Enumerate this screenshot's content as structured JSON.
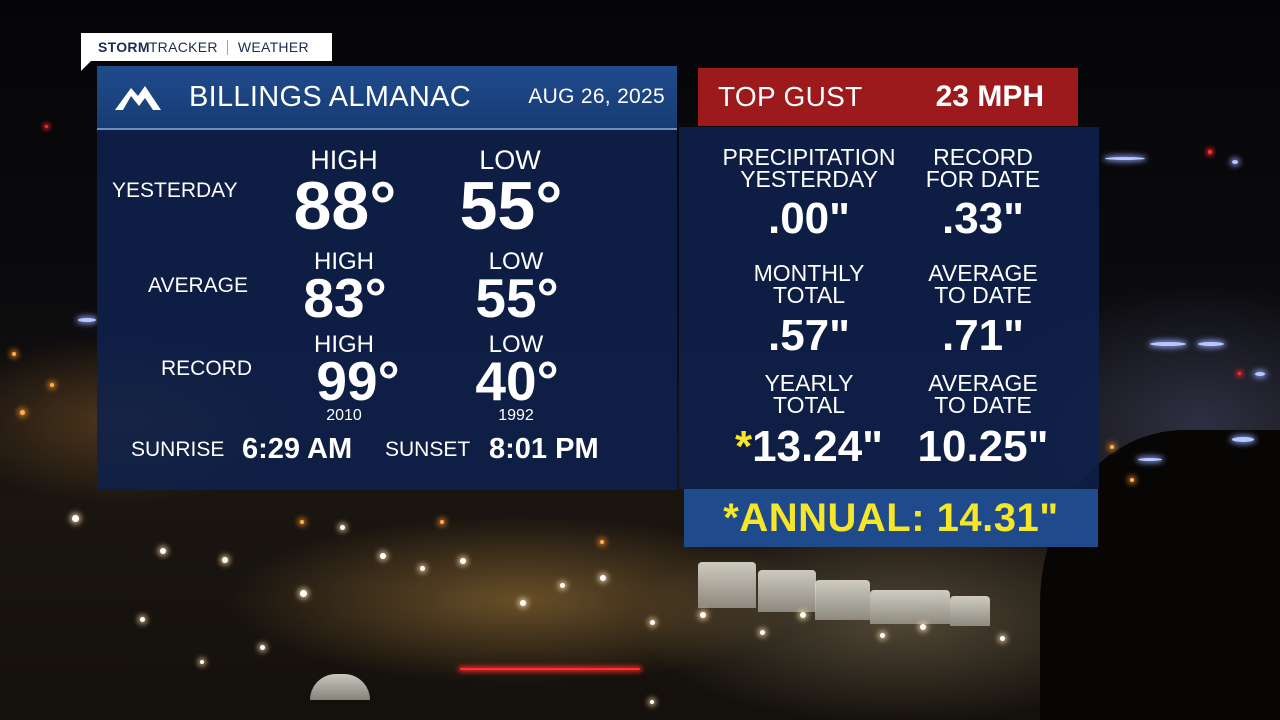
{
  "brand": {
    "name_bold": "STORM",
    "name_rest": "TRACKER",
    "section": "WEATHER"
  },
  "header": {
    "title": "BILLINGS ALMANAC",
    "date": "AUG 26, 2025",
    "icon": "mountain-icon"
  },
  "gust": {
    "label": "TOP GUST",
    "value": "23 MPH"
  },
  "yesterday": {
    "label": "YESTERDAY",
    "high_label": "HIGH",
    "low_label": "LOW",
    "high": "88°",
    "low": "55°"
  },
  "average": {
    "label": "AVERAGE",
    "high_label": "HIGH",
    "low_label": "LOW",
    "high": "83°",
    "low": "55°"
  },
  "record": {
    "label": "RECORD",
    "high_label": "HIGH",
    "low_label": "LOW",
    "high": "99°",
    "low": "40°",
    "high_year": "2010",
    "low_year": "1992"
  },
  "sun": {
    "sunrise_label": "SUNRISE",
    "sunrise": "6:29 AM",
    "sunset_label": "SUNSET",
    "sunset": "8:01 PM"
  },
  "precip": {
    "yesterday_label_1": "PRECIPITATION",
    "yesterday_label_2": "YESTERDAY",
    "yesterday_value": ".00\"",
    "record_label_1": "RECORD",
    "record_label_2": "FOR DATE",
    "record_value": ".33\"",
    "monthly_label_1": "MONTHLY",
    "monthly_label_2": "TOTAL",
    "monthly_value": ".57\"",
    "monthly_avg_label_1": "AVERAGE",
    "monthly_avg_label_2": "TO DATE",
    "monthly_avg_value": ".71\"",
    "yearly_label_1": "YEARLY",
    "yearly_label_2": "TOTAL",
    "yearly_star": "*",
    "yearly_value": "13.24\"",
    "yearly_avg_label_1": "AVERAGE",
    "yearly_avg_label_2": "TO DATE",
    "yearly_avg_value": "10.25\""
  },
  "annual": {
    "text": "*ANNUAL: 14.31\""
  },
  "colors": {
    "header_blue": "#1f4b8c",
    "panel_navy": "#0e214d",
    "gust_red": "#9d1a1c",
    "annual_yellow": "#f6e62a"
  }
}
